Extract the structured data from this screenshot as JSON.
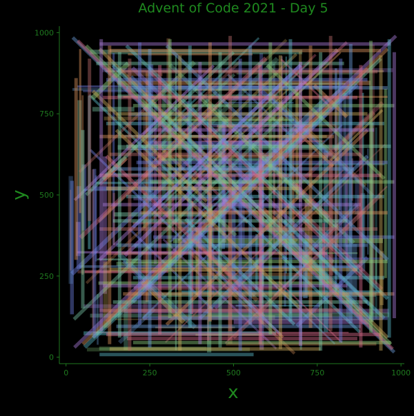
{
  "chart_data": {
    "type": "line",
    "title": "Advent of Code 2021 - Day 5",
    "xlabel": "x",
    "ylabel": "y",
    "xlim": [
      -20,
      1010
    ],
    "ylim": [
      -20,
      1020
    ],
    "xticks": [
      0,
      250,
      500,
      750,
      1000
    ],
    "yticks": [
      0,
      250,
      500,
      750,
      1000
    ],
    "xtick_labels": [
      "0",
      "250",
      "500",
      "750",
      "1000"
    ],
    "ytick_labels": [
      "0",
      "250",
      "500",
      "750",
      "1000"
    ],
    "grid": false,
    "legend": "none",
    "description_of_data": "A dense set of several hundred semi-transparent line segments: horizontal, vertical and 45-degree diagonal vent lines spanning roughly 10..990 on both axes.",
    "segments": [
      [
        20,
        985,
        980,
        15
      ],
      [
        35,
        975,
        975,
        25
      ],
      [
        60,
        960,
        970,
        40
      ],
      [
        100,
        950,
        960,
        60
      ],
      [
        140,
        900,
        910,
        120
      ],
      [
        25,
        30,
        985,
        990
      ],
      [
        50,
        40,
        960,
        950
      ],
      [
        80,
        60,
        940,
        920
      ],
      [
        120,
        110,
        900,
        890
      ],
      [
        200,
        170,
        870,
        840
      ],
      [
        300,
        960,
        960,
        300
      ],
      [
        250,
        880,
        880,
        250
      ],
      [
        400,
        800,
        800,
        400
      ],
      [
        150,
        700,
        700,
        150
      ],
      [
        180,
        960,
        960,
        180
      ],
      [
        100,
        300,
        700,
        900
      ],
      [
        300,
        100,
        900,
        700
      ],
      [
        60,
        500,
        500,
        940
      ],
      [
        500,
        60,
        940,
        500
      ],
      [
        200,
        400,
        700,
        900
      ],
      [
        400,
        120,
        900,
        620
      ],
      [
        120,
        620,
        520,
        220
      ],
      [
        600,
        900,
        950,
        550
      ],
      [
        80,
        820,
        420,
        480
      ],
      [
        650,
        420,
        950,
        120
      ],
      [
        100,
        965,
        970,
        965
      ],
      [
        130,
        945,
        940,
        945
      ],
      [
        90,
        905,
        830,
        905
      ],
      [
        160,
        880,
        930,
        880
      ],
      [
        120,
        855,
        900,
        855
      ],
      [
        180,
        830,
        960,
        830
      ],
      [
        110,
        800,
        870,
        800
      ],
      [
        200,
        775,
        980,
        775
      ],
      [
        150,
        750,
        900,
        750
      ],
      [
        120,
        720,
        950,
        720
      ],
      [
        240,
        700,
        920,
        700
      ],
      [
        100,
        680,
        800,
        680
      ],
      [
        180,
        650,
        970,
        650
      ],
      [
        130,
        625,
        880,
        625
      ],
      [
        210,
        600,
        960,
        600
      ],
      [
        140,
        580,
        860,
        580
      ],
      [
        100,
        560,
        940,
        560
      ],
      [
        250,
        540,
        980,
        540
      ],
      [
        120,
        520,
        700,
        520
      ],
      [
        180,
        495,
        950,
        495
      ],
      [
        110,
        470,
        880,
        470
      ],
      [
        220,
        445,
        960,
        445
      ],
      [
        140,
        420,
        840,
        420
      ],
      [
        100,
        395,
        930,
        395
      ],
      [
        260,
        370,
        980,
        370
      ],
      [
        150,
        345,
        900,
        345
      ],
      [
        120,
        320,
        780,
        320
      ],
      [
        180,
        295,
        960,
        295
      ],
      [
        130,
        270,
        870,
        270
      ],
      [
        200,
        245,
        950,
        245
      ],
      [
        110,
        220,
        840,
        220
      ],
      [
        170,
        195,
        980,
        195
      ],
      [
        140,
        170,
        900,
        170
      ],
      [
        100,
        145,
        820,
        145
      ],
      [
        230,
        120,
        960,
        120
      ],
      [
        150,
        95,
        880,
        95
      ],
      [
        120,
        70,
        940,
        70
      ],
      [
        200,
        45,
        970,
        45
      ],
      [
        130,
        25,
        760,
        25
      ],
      [
        100,
        8,
        560,
        8
      ],
      [
        105,
        980,
        105,
        80
      ],
      [
        130,
        960,
        130,
        40
      ],
      [
        160,
        940,
        160,
        60
      ],
      [
        190,
        920,
        190,
        20
      ],
      [
        220,
        970,
        220,
        100
      ],
      [
        250,
        950,
        250,
        30
      ],
      [
        280,
        900,
        280,
        70
      ],
      [
        310,
        980,
        310,
        120
      ],
      [
        340,
        930,
        340,
        20
      ],
      [
        370,
        960,
        370,
        90
      ],
      [
        400,
        910,
        400,
        40
      ],
      [
        430,
        970,
        430,
        110
      ],
      [
        460,
        940,
        460,
        30
      ],
      [
        490,
        990,
        490,
        80
      ],
      [
        520,
        920,
        520,
        20
      ],
      [
        550,
        960,
        550,
        100
      ],
      [
        580,
        900,
        580,
        40
      ],
      [
        610,
        970,
        610,
        70
      ],
      [
        640,
        930,
        640,
        25
      ],
      [
        670,
        980,
        670,
        110
      ],
      [
        700,
        910,
        700,
        35
      ],
      [
        730,
        960,
        730,
        90
      ],
      [
        760,
        940,
        760,
        20
      ],
      [
        790,
        990,
        790,
        80
      ],
      [
        820,
        920,
        820,
        45
      ],
      [
        850,
        965,
        850,
        105
      ],
      [
        880,
        900,
        880,
        30
      ],
      [
        910,
        975,
        910,
        75
      ],
      [
        940,
        930,
        940,
        20
      ],
      [
        965,
        980,
        965,
        60
      ],
      [
        980,
        940,
        980,
        120
      ],
      [
        30,
        860,
        30,
        300
      ],
      [
        50,
        700,
        50,
        150
      ],
      [
        70,
        920,
        70,
        420
      ],
      [
        85,
        580,
        85,
        60
      ]
    ]
  }
}
